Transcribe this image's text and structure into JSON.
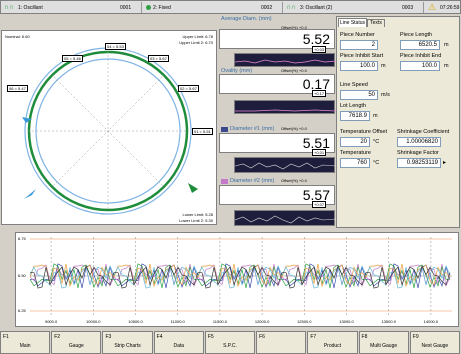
{
  "status": {
    "s1": {
      "label": "1: Oscillant",
      "code": "0001"
    },
    "s2": {
      "label": "2: Fixed",
      "code": "0002"
    },
    "s3": {
      "label": "3: Oscillant (2)",
      "code": "0003"
    },
    "time": "07:26:59"
  },
  "gauge": {
    "nominal": "Nominal: 6.60",
    "upper1": "Upper Limit: 6.78",
    "upper2": "Upper Limit 2: 6.70",
    "lower1": "Lower Limit: 5.28",
    "lower2": "Lower Limit 2: 5.30",
    "readings": [
      "04 = 5.53",
      "05 = 5.46",
      "03 = 5.67",
      "06 = 5.47",
      "02 = 5.67",
      "01 = 5.51"
    ]
  },
  "meas": [
    {
      "title": "Average Diam. (mm)",
      "offset": "Offset(%) +0.0",
      "value": "5.52",
      "delta": "+0.03",
      "ticks": [
        "5.70",
        "5.60",
        "5.50",
        "5.26"
      ]
    },
    {
      "title": "Ovality (mm)",
      "offset": "Offset(%) +0.0",
      "value": "0.17",
      "delta": "+0.17",
      "ticks": [
        "0.05",
        "0.02",
        "0.01"
      ]
    },
    {
      "title": "Diameter #1 (mm)",
      "offset": "Offset(%) +0.0",
      "value": "5.51",
      "delta": "+0.01",
      "ticks": [
        "5.70",
        "5.60",
        "5.50",
        "5.26"
      ]
    },
    {
      "title": "Diameter #2 (mm)",
      "offset": "Offset(%) +0.0",
      "value": "5.57",
      "delta": "+0.07",
      "ticks": [
        "5.70",
        "5.60",
        "5.50",
        "5.26"
      ]
    }
  ],
  "tabs": {
    "t1": "Line Status",
    "t2": "Texts"
  },
  "form": {
    "piece_number": "Piece Number",
    "piece_number_v": "2",
    "piece_length": "Piece Length",
    "piece_length_v": "6520.5",
    "piece_length_u": "m",
    "inhibit_start": "Piece Inhibit Start",
    "inhibit_start_v": "100.0",
    "inhibit_start_u": "m",
    "inhibit_end": "Piece Inhibit End",
    "inhibit_end_v": "100.0",
    "inhibit_end_u": "m",
    "line_speed": "Line Speed",
    "line_speed_v": "50",
    "line_speed_u": "m/s",
    "lot_length": "Lot Length",
    "lot_length_v": "7618.9",
    "lot_length_u": "m",
    "temp_offset": "Temperature Offset",
    "temp_offset_v": "20",
    "temp_offset_u": "°C",
    "shrink_coef": "Shrinkage Coefficient",
    "shrink_coef_v": "1.00006820",
    "temperature": "Temperature",
    "temperature_v": "760",
    "temperature_u": "°C",
    "shrink_factor": "Shrinkage Factor",
    "shrink_factor_v": "0.98253119"
  },
  "chart": {
    "yticks": [
      "6.75",
      "6.50",
      "6.25"
    ],
    "xticks": [
      "9000.0",
      "10000.0",
      "10500.0",
      "11000.0",
      "11500.0",
      "12000.0",
      "12500.0",
      "13000.0",
      "13500.0",
      "14000.0"
    ]
  },
  "fkeys": [
    {
      "num": "F1",
      "label": "Main"
    },
    {
      "num": "F2",
      "label": "Gauge"
    },
    {
      "num": "F3",
      "label": "Strip Charts"
    },
    {
      "num": "F4",
      "label": "Data"
    },
    {
      "num": "F5",
      "label": "S.P.C."
    },
    {
      "num": "F6",
      "label": ""
    },
    {
      "num": "F7",
      "label": "Product"
    },
    {
      "num": "F8",
      "label": "Multi Gauge"
    },
    {
      "num": "F9",
      "label": "Next Gauge"
    }
  ]
}
